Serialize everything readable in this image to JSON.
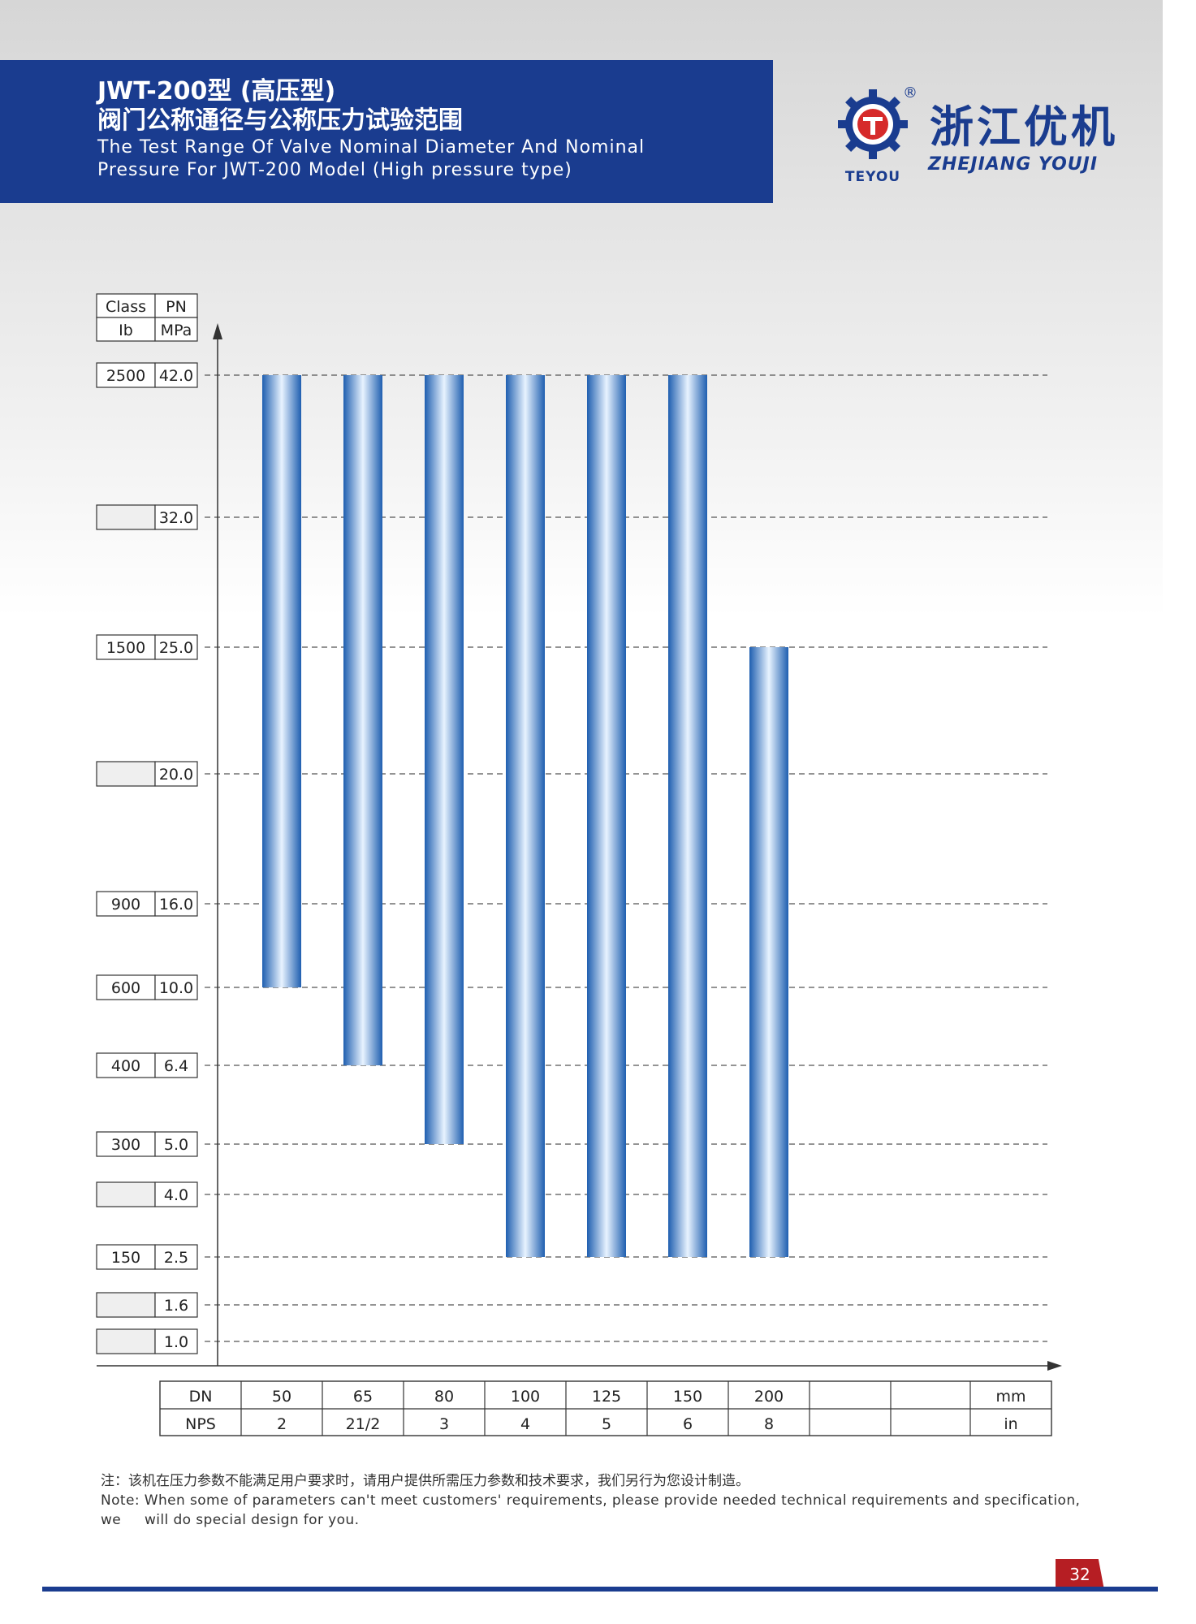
{
  "header": {
    "title_cn_1": "JWT-200型 (高压型)",
    "title_cn_2": "阀门公称通径与公称压力试验范围",
    "title_en_1": "The Test Range Of Valve Nominal Diameter And Nominal",
    "title_en_2": "Pressure For JWT-200 Model (High pressure type)"
  },
  "logo": {
    "name_cn": "浙江优机",
    "name_en": "ZHEJIANG YOUJI",
    "brand": "TEYOU",
    "reg_mark": "®"
  },
  "colors": {
    "header_bg": "#1a3c8f",
    "bar_dark": "#1f5fb0",
    "bar_light": "#e8f3ff",
    "page_badge": "#b61e23"
  },
  "chart_data": {
    "type": "bar",
    "subtype": "floating-range",
    "y_header": {
      "class_label": "Class",
      "class_unit": "Ib",
      "pn_label": "PN",
      "pn_unit": "MPa"
    },
    "y_ticks": [
      {
        "pn": "42.0",
        "class": "2500"
      },
      {
        "pn": "32.0",
        "class": ""
      },
      {
        "pn": "25.0",
        "class": "1500"
      },
      {
        "pn": "20.0",
        "class": ""
      },
      {
        "pn": "16.0",
        "class": "900"
      },
      {
        "pn": "10.0",
        "class": "600"
      },
      {
        "pn": "6.4",
        "class": "400"
      },
      {
        "pn": "5.0",
        "class": "300"
      },
      {
        "pn": "4.0",
        "class": ""
      },
      {
        "pn": "2.5",
        "class": "150"
      },
      {
        "pn": "1.6",
        "class": ""
      },
      {
        "pn": "1.0",
        "class": ""
      }
    ],
    "x_table": {
      "row1_label": "DN",
      "row1_unit": "mm",
      "row2_label": "NPS",
      "row2_unit": "in",
      "columns": [
        {
          "dn": "50",
          "nps": "2"
        },
        {
          "dn": "65",
          "nps": "21/2"
        },
        {
          "dn": "80",
          "nps": "3"
        },
        {
          "dn": "100",
          "nps": "4"
        },
        {
          "dn": "125",
          "nps": "5"
        },
        {
          "dn": "150",
          "nps": "6"
        },
        {
          "dn": "200",
          "nps": "8"
        },
        {
          "dn": "",
          "nps": ""
        },
        {
          "dn": "",
          "nps": ""
        }
      ]
    },
    "bars": [
      {
        "dn": "50",
        "min": 10.0,
        "max": 42.0
      },
      {
        "dn": "65",
        "min": 6.4,
        "max": 42.0
      },
      {
        "dn": "80",
        "min": 5.0,
        "max": 42.0
      },
      {
        "dn": "100",
        "min": 2.5,
        "max": 42.0
      },
      {
        "dn": "125",
        "min": 2.5,
        "max": 42.0
      },
      {
        "dn": "150",
        "min": 2.5,
        "max": 42.0
      },
      {
        "dn": "200",
        "min": 2.5,
        "max": 25.0
      }
    ],
    "grid": "dashed"
  },
  "notes": {
    "cn": "注：该机在压力参数不能满足用户要求时，请用户提供所需压力参数和技术要求，我们另行为您设计制造。",
    "en_1": "Note: When some of parameters can't meet customers' requirements, please provide needed technical requirements and specification, we",
    "en_2": "will do special design for you."
  },
  "page_number": "32"
}
